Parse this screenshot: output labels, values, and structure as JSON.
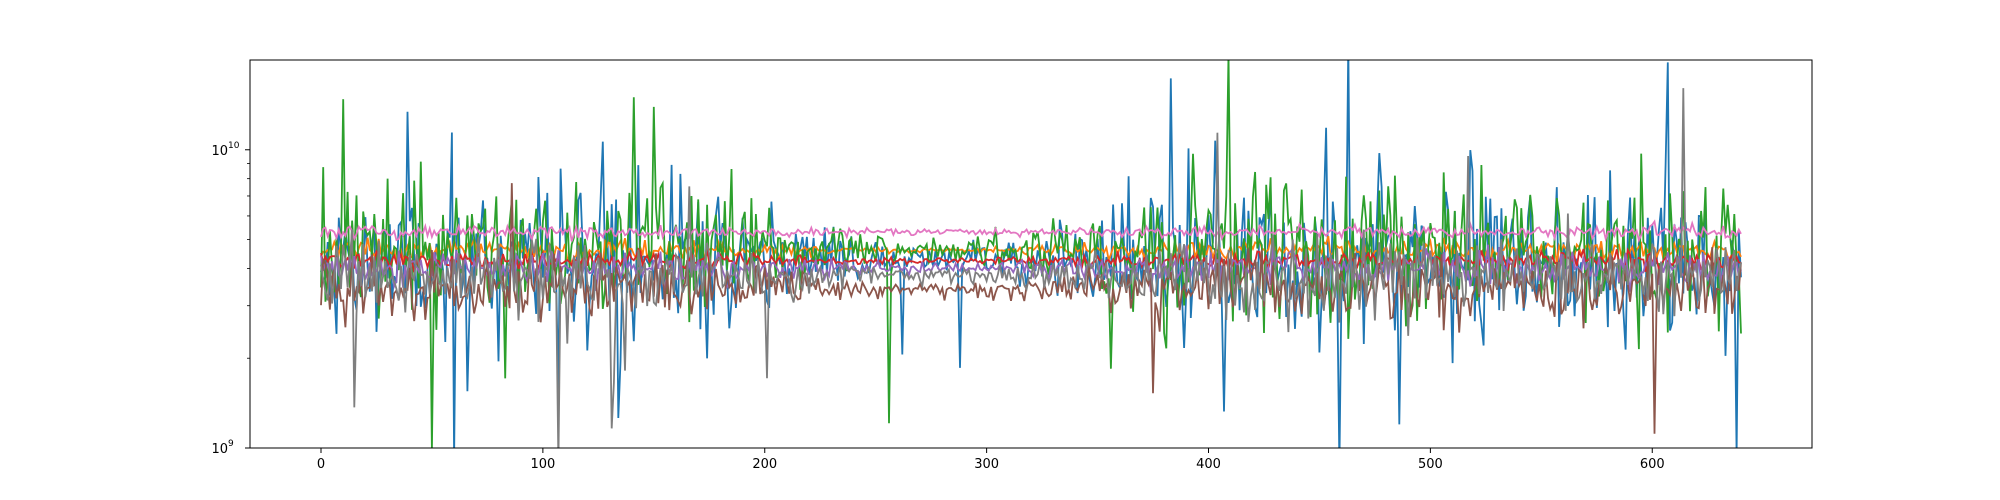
{
  "chart_data": {
    "type": "line",
    "title": "",
    "xlabel": "",
    "ylabel": "",
    "yscale": "log",
    "xlim": [
      -32,
      672
    ],
    "ylim": [
      1000000000,
      20000000000
    ],
    "grid": false,
    "legend": "none",
    "x_ticks": [
      {
        "value": 0,
        "label": "0"
      },
      {
        "value": 100,
        "label": "100"
      },
      {
        "value": 200,
        "label": "200"
      },
      {
        "value": 300,
        "label": "300"
      },
      {
        "value": 400,
        "label": "400"
      },
      {
        "value": 500,
        "label": "500"
      },
      {
        "value": 600,
        "label": "600"
      }
    ],
    "y_ticks": [
      {
        "value": 1000000000,
        "base": "10",
        "exp": "9"
      },
      {
        "value": 10000000000,
        "base": "10",
        "exp": "10"
      }
    ],
    "n_points": 641,
    "series": [
      {
        "color": "#1f77b4",
        "base": 4300000000.0,
        "spread": 0.32,
        "spike_prob": 0.04,
        "center_damp": 0.85,
        "seed": 11
      },
      {
        "color": "#ff7f0e",
        "base": 4600000000.0,
        "spread": 0.04,
        "spike_prob": 0.0,
        "center_damp": 0.8,
        "seed": 23
      },
      {
        "color": "#2ca02c",
        "base": 4600000000.0,
        "spread": 0.26,
        "spike_prob": 0.035,
        "center_damp": 0.8,
        "seed": 37
      },
      {
        "color": "#d62728",
        "base": 4250000000.0,
        "spread": 0.035,
        "spike_prob": 0.0,
        "center_damp": 0.7,
        "seed": 41
      },
      {
        "color": "#9467bd",
        "base": 4000000000.0,
        "spread": 0.07,
        "spike_prob": 0.0,
        "center_damp": 0.7,
        "seed": 53
      },
      {
        "color": "#8c564b",
        "base": 3400000000.0,
        "spread": 0.12,
        "spike_prob": 0.01,
        "center_damp": 0.8,
        "seed": 67
      },
      {
        "color": "#e377c2",
        "base": 5300000000.0,
        "spread": 0.025,
        "spike_prob": 0.0,
        "center_damp": 0.5,
        "seed": 79
      },
      {
        "color": "#7f7f7f",
        "base": 3800000000.0,
        "spread": 0.14,
        "spike_prob": 0.015,
        "center_damp": 0.8,
        "seed": 83
      }
    ]
  }
}
